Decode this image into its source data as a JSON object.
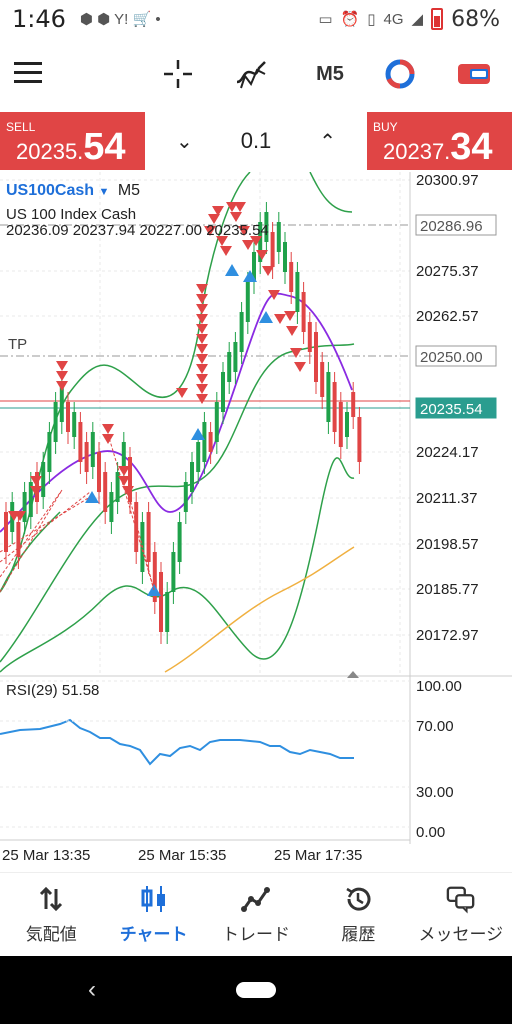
{
  "status_bar": {
    "time": "1:46",
    "network": "4G",
    "battery": "68%"
  },
  "toolbar": {
    "timeframe": "M5"
  },
  "quote": {
    "sell_label": "SELL",
    "sell_small": "20235.",
    "sell_big": "54",
    "lot": "0.1",
    "buy_label": "BUY",
    "buy_small": "20237.",
    "buy_big": "34"
  },
  "chart": {
    "symbol": "US100Cash",
    "timeframe": "M5",
    "description": "US 100 Index Cash",
    "ohlc": "20236.09 20237.94 20227.00 20235.54",
    "tp_label": "TP",
    "rsi_label": "RSI(29) 51.58",
    "price_ticks": [
      "20300.97",
      "20275.37",
      "20262.57",
      "20224.17",
      "20211.37",
      "20198.57",
      "20185.77",
      "20172.97"
    ],
    "price_boxes": {
      "level_1": "20286.96",
      "level_2": "20250.00",
      "bid": "20235.54"
    },
    "rsi_ticks": [
      "100.00",
      "70.00",
      "30.00",
      "0.00"
    ],
    "time_ticks": [
      "25 Mar 13:35",
      "25 Mar 15:35",
      "25 Mar 17:35"
    ],
    "colors": {
      "bull": "#1fa14a",
      "bear": "#e04545",
      "bands": "#2ea04a",
      "ma_fast": "#8a2be2",
      "ma_slow": "#f0b040",
      "rsi": "#2f8fe0",
      "bid_line": "#2a9d8f",
      "ask_line": "#e04545"
    }
  },
  "bottom_nav": {
    "quotes": "気配値",
    "chart": "チャート",
    "trade": "トレード",
    "history": "履歴",
    "messages": "メッセージ"
  }
}
